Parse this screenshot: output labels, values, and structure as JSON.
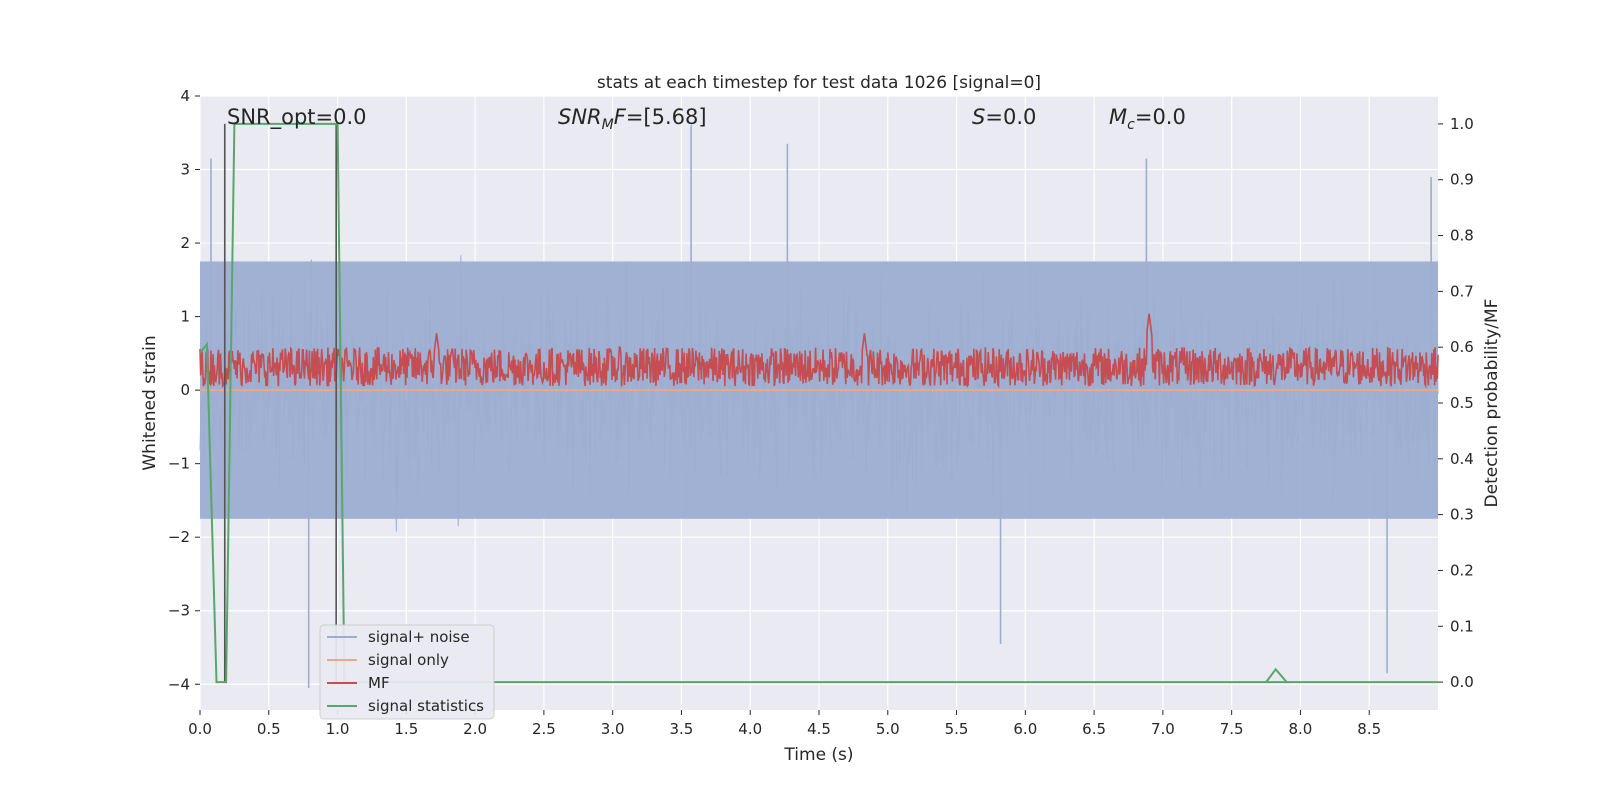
{
  "chart_data": {
    "type": "line",
    "title": "stats at each timestep for test data 1026 [signal=0]",
    "xlabel": "Time (s)",
    "ylabel_left": "Whitened strain",
    "ylabel_right": "Detection probability/MF",
    "xlim": [
      0,
      9
    ],
    "ylim_left": [
      -4.35,
      4
    ],
    "ylim_right": [
      -0.05,
      1.05
    ],
    "x_ticks": [
      "0.0",
      "0.5",
      "1.0",
      "1.5",
      "2.0",
      "2.5",
      "3.0",
      "3.5",
      "4.0",
      "4.5",
      "5.0",
      "5.5",
      "6.0",
      "6.5",
      "7.0",
      "7.5",
      "8.0",
      "8.5"
    ],
    "y_ticks_left": [
      "4",
      "3",
      "2",
      "1",
      "0",
      "−1",
      "−2",
      "−3",
      "−4"
    ],
    "y_ticks_right": [
      "1.0",
      "0.9",
      "0.8",
      "0.7",
      "0.6",
      "0.5",
      "0.4",
      "0.3",
      "0.2",
      "0.1",
      "0.0"
    ],
    "grid": true,
    "legend_position": "lower-left",
    "annotations": {
      "snr_opt": {
        "prefix": "SNR_opt=",
        "value": "0.0"
      },
      "snr_mf": {
        "base": "SNR",
        "sub": "M",
        "rest": "F=",
        "value": "[5.68]"
      },
      "s": {
        "var": "S",
        "eq": "=",
        "value": "0.0"
      },
      "mc": {
        "base": "M",
        "sub": "c",
        "eq": "=",
        "value": "0.0"
      }
    },
    "series": [
      {
        "name": "signal+ noise",
        "axis": "left",
        "color": "#9daed1",
        "description_kind": "noise",
        "band_left": [
          -1.75,
          1.75
        ],
        "spike_extremes": [
          {
            "x": 0.08,
            "y": 3.15
          },
          {
            "x": 0.79,
            "y": -4.05
          },
          {
            "x": 3.57,
            "y": 3.6
          },
          {
            "x": 4.27,
            "y": 3.35
          },
          {
            "x": 5.82,
            "y": -3.45
          },
          {
            "x": 6.88,
            "y": 3.15
          },
          {
            "x": 8.63,
            "y": -3.85
          },
          {
            "x": 8.95,
            "y": 2.9
          }
        ]
      },
      {
        "name": "signal only",
        "axis": "left",
        "color": "#e8a98a",
        "values_constant": 0.0
      },
      {
        "name": "MF",
        "axis": "right",
        "color": "#c44e52",
        "band_right": [
          0.53,
          0.6
        ],
        "peaks": [
          {
            "x": 1.72,
            "y": 0.625
          },
          {
            "x": 4.83,
            "y": 0.625
          },
          {
            "x": 6.9,
            "y": 0.66
          }
        ]
      },
      {
        "name": "signal statistics",
        "axis": "right",
        "color": "#55a868",
        "x": [
          0.0,
          0.05,
          0.12,
          0.19,
          0.25,
          1.0,
          1.05,
          1.06,
          9.0
        ],
        "y": [
          0.59,
          0.605,
          0.0,
          0.0,
          1.0,
          1.0,
          0.0,
          0.0,
          0.0
        ],
        "tail": {
          "x": [
            7.75,
            7.82,
            7.9
          ],
          "y": [
            0.0,
            0.023,
            0.0
          ]
        }
      }
    ],
    "vertical_markers_x": [
      0.18,
      0.99
    ]
  }
}
